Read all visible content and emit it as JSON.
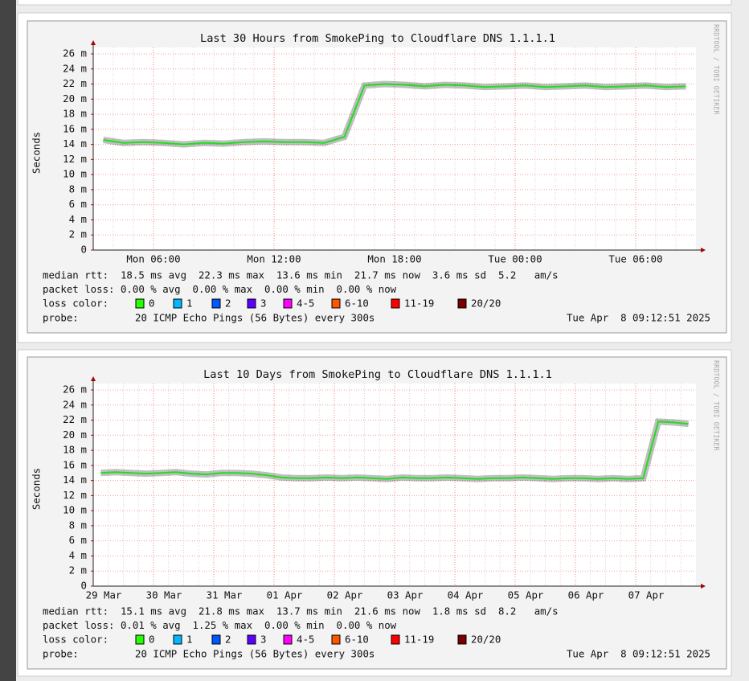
{
  "chart_data": [
    {
      "type": "line",
      "title": "Last 30 Hours from SmokePing to Cloudflare DNS 1.1.1.1",
      "y_label": "Seconds",
      "side_text": "RRDTOOL / TOBI OETIKER",
      "categories": [
        null,
        null,
        null,
        "Mon 06:00",
        null,
        null,
        null,
        null,
        null,
        "Mon 12:00",
        null,
        null,
        null,
        null,
        null,
        "Mon 18:00",
        null,
        null,
        null,
        null,
        null,
        "Tue 00:00",
        null,
        null,
        null,
        null,
        null,
        "Tue 06:00",
        null,
        null
      ],
      "series": [
        {
          "name": "median rtt",
          "color": "#22dd22",
          "values": [
            0.0146,
            0.0142,
            0.0143,
            0.0142,
            0.014,
            0.0142,
            0.0141,
            0.0143,
            0.0144,
            0.0143,
            0.0143,
            0.0142,
            0.015,
            0.0218,
            0.022,
            0.0219,
            0.0217,
            0.0219,
            0.0218,
            0.0216,
            0.0217,
            0.0218,
            0.0216,
            0.0217,
            0.0218,
            0.0216,
            0.0217,
            0.0218,
            0.0216,
            0.0217
          ]
        }
      ],
      "ylim": [
        0,
        0.026
      ],
      "yticks": [
        {
          "value": 0,
          "label": "0"
        },
        {
          "value": 0.002,
          "label": "2 m"
        },
        {
          "value": 0.004,
          "label": "4 m"
        },
        {
          "value": 0.006,
          "label": "6 m"
        },
        {
          "value": 0.008,
          "label": "8 m"
        },
        {
          "value": 0.01,
          "label": "10 m"
        },
        {
          "value": 0.012,
          "label": "12 m"
        },
        {
          "value": 0.014,
          "label": "14 m"
        },
        {
          "value": 0.016,
          "label": "16 m"
        },
        {
          "value": 0.018,
          "label": "18 m"
        },
        {
          "value": 0.02,
          "label": "20 m"
        },
        {
          "value": 0.022,
          "label": "22 m"
        },
        {
          "value": 0.024,
          "label": "24 m"
        },
        {
          "value": 0.026,
          "label": "26 m"
        }
      ],
      "grid": true,
      "stats": [
        "median rtt:  18.5 ms avg  22.3 ms max  13.6 ms min  21.7 ms now  3.6 ms sd  5.2   am/s",
        "packet loss: 0.00 % avg  0.00 % max  0.00 % min  0.00 % now"
      ],
      "loss_label": "loss color:",
      "loss_colors": [
        {
          "name": "0",
          "color": "#26ff00"
        },
        {
          "name": "1",
          "color": "#00b8ff"
        },
        {
          "name": "2",
          "color": "#0059ff"
        },
        {
          "name": "3",
          "color": "#5e00ff"
        },
        {
          "name": "4-5",
          "color": "#ff00ff"
        },
        {
          "name": "6-10",
          "color": "#ff5500"
        },
        {
          "name": "11-19",
          "color": "#ff0000"
        },
        {
          "name": "20/20",
          "color": "#7a0000"
        }
      ],
      "probe_label": "probe:",
      "probe": "20 ICMP Echo Pings (56 Bytes) every 300s",
      "timestamp": "Tue Apr  8 09:12:51 2025"
    },
    {
      "type": "line",
      "title": "Last 10 Days from SmokePing to Cloudflare DNS 1.1.1.1",
      "y_label": "Seconds",
      "side_text": "RRDTOOL / TOBI OETIKER",
      "categories": [
        "29 Mar",
        null,
        null,
        null,
        "30 Mar",
        null,
        null,
        null,
        "31 Mar",
        null,
        null,
        null,
        "01 Apr",
        null,
        null,
        null,
        "02 Apr",
        null,
        null,
        null,
        "03 Apr",
        null,
        null,
        null,
        "04 Apr",
        null,
        null,
        null,
        "05 Apr",
        null,
        null,
        null,
        "06 Apr",
        null,
        null,
        null,
        "07 Apr",
        null,
        null,
        null
      ],
      "series": [
        {
          "name": "median rtt",
          "color": "#22dd22",
          "values": [
            0.015,
            0.0151,
            0.015,
            0.0149,
            0.015,
            0.0151,
            0.0149,
            0.0148,
            0.015,
            0.015,
            0.0149,
            0.0147,
            0.0144,
            0.0143,
            0.0143,
            0.0144,
            0.0143,
            0.0144,
            0.0143,
            0.0142,
            0.0144,
            0.0143,
            0.0143,
            0.0144,
            0.0143,
            0.0142,
            0.0143,
            0.0143,
            0.0144,
            0.0143,
            0.0142,
            0.0143,
            0.0143,
            0.0142,
            0.0143,
            0.0142,
            0.0143,
            0.0218,
            0.0217,
            0.0215
          ]
        }
      ],
      "ylim": [
        0,
        0.026
      ],
      "yticks": [
        {
          "value": 0,
          "label": "0"
        },
        {
          "value": 0.002,
          "label": "2 m"
        },
        {
          "value": 0.004,
          "label": "4 m"
        },
        {
          "value": 0.006,
          "label": "6 m"
        },
        {
          "value": 0.008,
          "label": "8 m"
        },
        {
          "value": 0.01,
          "label": "10 m"
        },
        {
          "value": 0.012,
          "label": "12 m"
        },
        {
          "value": 0.014,
          "label": "14 m"
        },
        {
          "value": 0.016,
          "label": "16 m"
        },
        {
          "value": 0.018,
          "label": "18 m"
        },
        {
          "value": 0.02,
          "label": "20 m"
        },
        {
          "value": 0.022,
          "label": "22 m"
        },
        {
          "value": 0.024,
          "label": "24 m"
        },
        {
          "value": 0.026,
          "label": "26 m"
        }
      ],
      "grid": true,
      "stats": [
        "median rtt:  15.1 ms avg  21.8 ms max  13.7 ms min  21.6 ms now  1.8 ms sd  8.2   am/s",
        "packet loss: 0.01 % avg  1.25 % max  0.00 % min  0.00 % now"
      ],
      "loss_label": "loss color:",
      "loss_colors": [
        {
          "name": "0",
          "color": "#26ff00"
        },
        {
          "name": "1",
          "color": "#00b8ff"
        },
        {
          "name": "2",
          "color": "#0059ff"
        },
        {
          "name": "3",
          "color": "#5e00ff"
        },
        {
          "name": "4-5",
          "color": "#ff00ff"
        },
        {
          "name": "6-10",
          "color": "#ff5500"
        },
        {
          "name": "11-19",
          "color": "#ff0000"
        },
        {
          "name": "20/20",
          "color": "#7a0000"
        }
      ],
      "probe_label": "probe:",
      "probe": "20 ICMP Echo Pings (56 Bytes) every 300s",
      "timestamp": "Tue Apr  8 09:12:51 2025"
    }
  ]
}
